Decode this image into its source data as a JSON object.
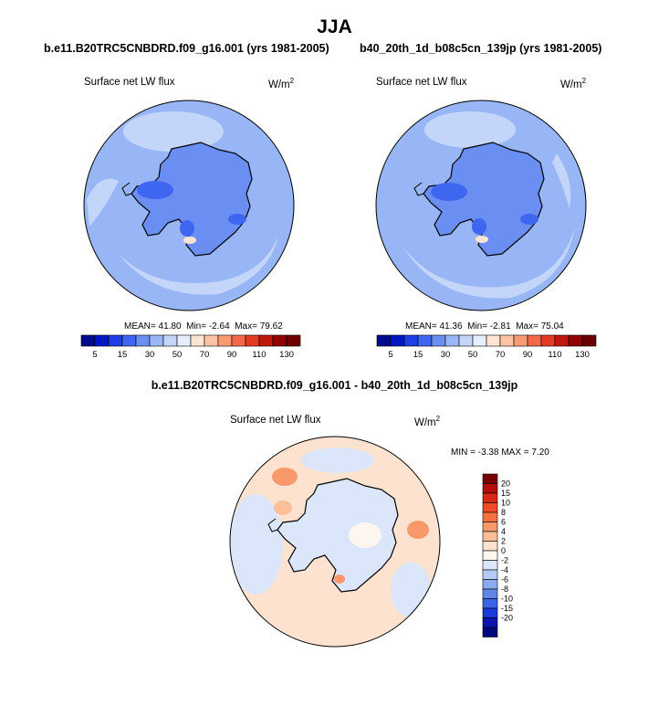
{
  "figure": {
    "season_title": "JJA",
    "colors": {
      "land_outline": "#000000",
      "map_border": "#000000"
    }
  },
  "chart_data": [
    {
      "type": "heatmap",
      "projection": "south-polar-stereographic",
      "case": "b.e11.B20TRC5CNBDRD.f09_g16.001 (yrs 1981-2005)",
      "variable": "Surface net LW flux",
      "units": "W/m",
      "units_exp": "2",
      "stats": {
        "mean_label": "MEAN=",
        "mean": "41.80",
        "min_label": "Min=",
        "min": "-2.64",
        "max_label": "Max=",
        "max": "79.62"
      },
      "dominant_value_range": [
        30,
        50
      ],
      "colorbar": {
        "orientation": "horizontal",
        "levels": [
          5,
          10,
          15,
          20,
          30,
          40,
          50,
          60,
          70,
          80,
          90,
          100,
          110,
          120,
          130
        ],
        "tick_labels": [
          "5",
          "15",
          "30",
          "50",
          "70",
          "90",
          "110",
          "130"
        ],
        "colors": [
          "#000a8c",
          "#0018c4",
          "#1e3fe6",
          "#3f66f0",
          "#6a8ef2",
          "#98b6f5",
          "#c3d6fa",
          "#e6eefd",
          "#fde4d3",
          "#fcc4a4",
          "#f99a73",
          "#f4694b",
          "#e53a24",
          "#c1180e",
          "#8f0404",
          "#6e0000"
        ]
      }
    },
    {
      "type": "heatmap",
      "projection": "south-polar-stereographic",
      "case": "b40_20th_1d_b08c5cn_139jp (yrs 1981-2005)",
      "variable": "Surface net LW flux",
      "units": "W/m",
      "units_exp": "2",
      "stats": {
        "mean_label": "MEAN=",
        "mean": "41.36",
        "min_label": "Min=",
        "min": "-2.81",
        "max_label": "Max=",
        "max": "75.04"
      },
      "dominant_value_range": [
        30,
        50
      ],
      "colorbar": {
        "orientation": "horizontal",
        "levels": [
          5,
          10,
          15,
          20,
          30,
          40,
          50,
          60,
          70,
          80,
          90,
          100,
          110,
          120,
          130
        ],
        "tick_labels": [
          "5",
          "15",
          "30",
          "50",
          "70",
          "90",
          "110",
          "130"
        ],
        "colors": [
          "#000a8c",
          "#0018c4",
          "#1e3fe6",
          "#3f66f0",
          "#6a8ef2",
          "#98b6f5",
          "#c3d6fa",
          "#e6eefd",
          "#fde4d3",
          "#fcc4a4",
          "#f99a73",
          "#f4694b",
          "#e53a24",
          "#c1180e",
          "#8f0404",
          "#6e0000"
        ]
      }
    },
    {
      "type": "heatmap",
      "projection": "south-polar-stereographic",
      "case": "b.e11.B20TRC5CNBDRD.f09_g16.001 - b40_20th_1d_b08c5cn_139jp",
      "variable": "Surface net LW flux",
      "units": "W/m",
      "units_exp": "2",
      "stats": {
        "min_label": "MIN =",
        "min": "-3.38",
        "max_label": "MAX =",
        "max": "7.20"
      },
      "dominant_value_range": [
        -2,
        2
      ],
      "colorbar": {
        "orientation": "vertical",
        "tick_labels": [
          "20",
          "15",
          "10",
          "8",
          "6",
          "4",
          "2",
          "0",
          "-2",
          "-4",
          "-6",
          "-8",
          "-10",
          "-15",
          "-20"
        ],
        "colors": [
          "#7a0000",
          "#b30d0d",
          "#d92916",
          "#f04a26",
          "#f7713f",
          "#f9986b",
          "#fcbf98",
          "#fde3cf",
          "#fdf6ef",
          "#dbe6fb",
          "#b4cbf4",
          "#8aacec",
          "#5f88e6",
          "#3a63e6",
          "#1a39d9",
          "#0a16ad",
          "#000a78"
        ]
      }
    }
  ]
}
